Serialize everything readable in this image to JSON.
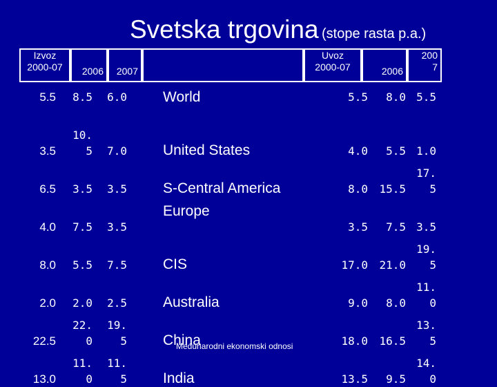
{
  "title": {
    "main": "Svetska trgovina",
    "sub": "(stope rasta p.a.)"
  },
  "headers": {
    "export_range": "Izvoz\n2000-07",
    "export_2006": "2006",
    "export_2007": "2007",
    "import_range": "Uvoz\n2000-07",
    "import_2006": "2006",
    "import_2007": "200\n7"
  },
  "rows": [
    {
      "region": "World",
      "ex_range": "5.5",
      "ex_2006": "8.5",
      "ex_2007": "6.0",
      "im_range": "5.5",
      "im_2006": "8.0",
      "im_2007": "5.5"
    },
    {
      "region": "United States",
      "ex_range": "3.5",
      "ex_2006": "10.\n5",
      "ex_2007": "7.0",
      "im_range": "4.0",
      "im_2006": "5.5",
      "im_2007": "1.0"
    },
    {
      "region": "S-Central America",
      "ex_range": "6.5",
      "ex_2006": "3.5",
      "ex_2007": "3.5",
      "im_range": "8.0",
      "im_2006": "15.5",
      "im_2007": "17.\n5"
    },
    {
      "region": "Europe",
      "ex_range": "4.0",
      "ex_2006": "7.5",
      "ex_2007": "3.5",
      "im_range": "3.5",
      "im_2006": "7.5",
      "im_2007": "3.5"
    },
    {
      "region": "CIS",
      "ex_range": "8.0",
      "ex_2006": "5.5",
      "ex_2007": "7.5",
      "im_range": "17.0",
      "im_2006": "21.0",
      "im_2007": "19.\n5"
    },
    {
      "region": "Australia",
      "ex_range": "2.0",
      "ex_2006": "2.0",
      "ex_2007": "2.5",
      "im_range": "9.0",
      "im_2006": "8.0",
      "im_2007": "11.\n0"
    },
    {
      "region": "China",
      "ex_range": "22.5",
      "ex_2006": "22.\n0",
      "ex_2007": "19.\n5",
      "im_range": "18.0",
      "im_2006": "16.5",
      "im_2007": "13.\n5"
    },
    {
      "region": "India",
      "ex_range": "13.0",
      "ex_2006": "11.\n0",
      "ex_2007": "11.\n5",
      "im_range": "13.5",
      "im_2006": "9.5",
      "im_2007": "14.\n0"
    }
  ],
  "footer": "Međunarodni ekonomski odnosi",
  "colors": {
    "background": "#000099",
    "header_band": "#ffffff",
    "text": "#ffffff"
  }
}
